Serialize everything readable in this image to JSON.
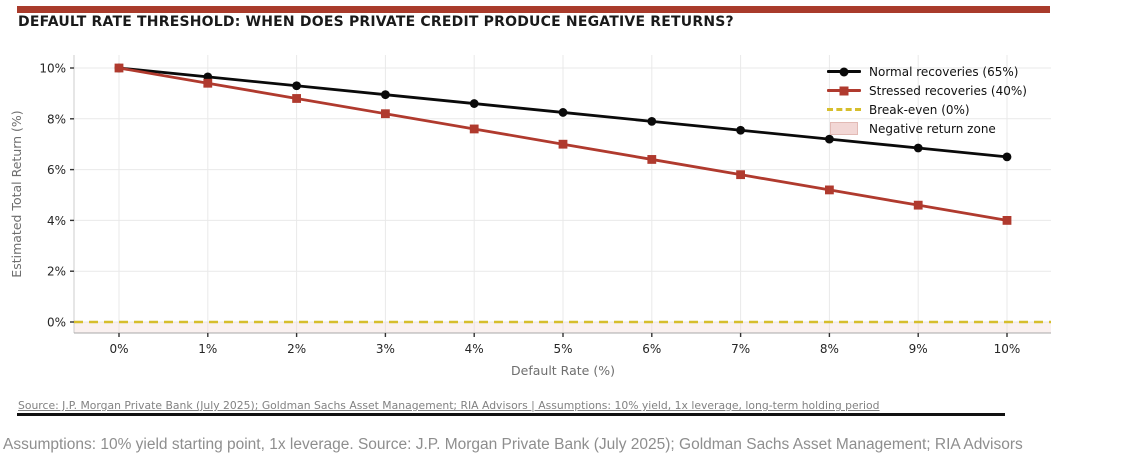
{
  "header": {
    "accent_color": "#A93B2B",
    "title": "DEFAULT RATE THRESHOLD: WHEN DOES PRIVATE CREDIT PRODUCE NEGATIVE RETURNS?"
  },
  "chart_data": {
    "type": "line",
    "title": "DEFAULT RATE THRESHOLD: WHEN DOES PRIVATE CREDIT PRODUCE NEGATIVE RETURNS?",
    "xlabel": "Default Rate (%)",
    "ylabel": "Estimated Total Return (%)",
    "x": [
      0,
      1,
      2,
      3,
      4,
      5,
      6,
      7,
      8,
      9,
      10
    ],
    "x_tick_labels": [
      "0%",
      "1%",
      "2%",
      "3%",
      "4%",
      "5%",
      "6%",
      "7%",
      "8%",
      "9%",
      "10%"
    ],
    "y_ticks": [
      0,
      2,
      4,
      6,
      8,
      10
    ],
    "y_tick_labels": [
      "0%",
      "2%",
      "4%",
      "6%",
      "8%",
      "10%"
    ],
    "ylim": [
      -0.45,
      10.55
    ],
    "grid": true,
    "legend_position": "upper-right",
    "series": [
      {
        "name": "Normal recoveries (65%)",
        "color": "#0a0a0a",
        "marker": "circle",
        "values": [
          10.0,
          9.65,
          9.3,
          8.95,
          8.6,
          8.25,
          7.9,
          7.55,
          7.2,
          6.85,
          6.5
        ]
      },
      {
        "name": "Stressed recoveries (40%)",
        "color": "#B03A2E",
        "marker": "square",
        "values": [
          10.0,
          9.4,
          8.8,
          8.2,
          7.6,
          7.0,
          6.4,
          5.8,
          5.2,
          4.6,
          4.0
        ]
      }
    ],
    "break_even": {
      "label": "Break-even (0%)",
      "value": 0,
      "color": "#D6BE2C",
      "style": "dashed"
    },
    "negative_zone": {
      "label": "Negative return zone",
      "fill": "#F2D7D5",
      "border": "#E2BAB5"
    }
  },
  "footer": {
    "source_line": "Source: J.P. Morgan Private Bank (July 2025); Goldman Sachs Asset Management; RIA Advisors   |   Assumptions: 10% yield, 1x leverage, long-term holding period",
    "caption": "Assumptions: 10% yield starting point, 1x leverage. Source: J.P. Morgan Private Bank (July 2025); Goldman Sachs Asset Management; RIA Advisors"
  }
}
